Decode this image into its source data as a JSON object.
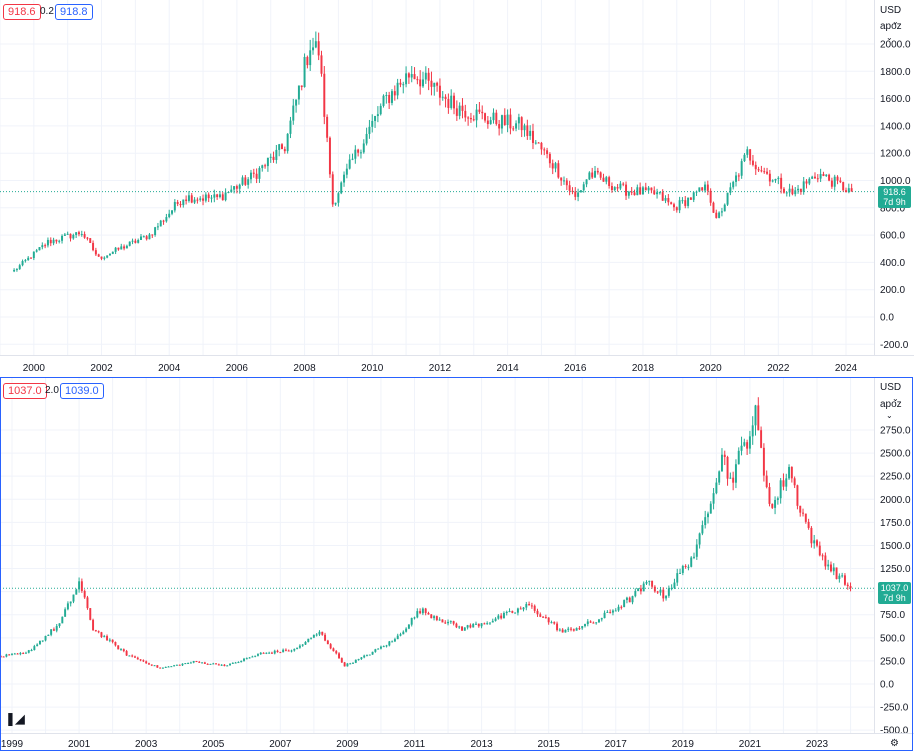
{
  "pane1": {
    "bid": "918.6",
    "spread": "0.2",
    "ask": "918.8",
    "currency": "USD",
    "scale_mode": "apoz",
    "last_price": "918.6",
    "countdown": "7d 9h"
  },
  "pane2": {
    "bid": "1037.0",
    "spread": "2.0",
    "ask": "1039.0",
    "currency": "USD",
    "scale_mode": "apoz",
    "last_price": "1037.0",
    "countdown": "7d 9h"
  },
  "colors": {
    "up": "#22ab94",
    "down": "#f23645",
    "grid": "#f0f3fa",
    "border": "#2962ff",
    "last_line": "#22ab94"
  },
  "icons": {
    "logo": "tradingview-logo-icon",
    "settings": "settings-gear-icon",
    "dropdown": "chevron-down-icon"
  },
  "chart_data": [
    {
      "type": "candlestick",
      "title": "",
      "ylim": [
        -250,
        2100
      ],
      "y_ticks": [
        "2000.0",
        "1800.0",
        "1600.0",
        "1400.0",
        "1200.0",
        "1000.0",
        "800.0",
        "600.0",
        "400.0",
        "200.0",
        "0.0",
        "-200.0"
      ],
      "x_ticks": [
        "2000",
        "2002",
        "2004",
        "2006",
        "2008",
        "2010",
        "2012",
        "2014",
        "2016",
        "2018",
        "2020",
        "2022",
        "2024"
      ],
      "last_value": 918.6,
      "key_points": [
        {
          "x": "1999-06",
          "y": 340
        },
        {
          "x": "2000-06",
          "y": 550
        },
        {
          "x": "2001-06",
          "y": 620
        },
        {
          "x": "2001-12",
          "y": 430
        },
        {
          "x": "2003-06",
          "y": 600
        },
        {
          "x": "2004-06",
          "y": 880
        },
        {
          "x": "2005-06",
          "y": 870
        },
        {
          "x": "2006-06",
          "y": 1020
        },
        {
          "x": "2007-06",
          "y": 1250
        },
        {
          "x": "2008-03",
          "y": 2000
        },
        {
          "x": "2008-06",
          "y": 1950
        },
        {
          "x": "2008-11",
          "y": 830
        },
        {
          "x": "2009-06",
          "y": 1150
        },
        {
          "x": "2010-06",
          "y": 1600
        },
        {
          "x": "2011-03",
          "y": 1800
        },
        {
          "x": "2011-09",
          "y": 1700
        },
        {
          "x": "2012-06",
          "y": 1550
        },
        {
          "x": "2013-06",
          "y": 1450
        },
        {
          "x": "2014-06",
          "y": 1400
        },
        {
          "x": "2015-06",
          "y": 1100
        },
        {
          "x": "2016-01",
          "y": 870
        },
        {
          "x": "2016-06",
          "y": 1050
        },
        {
          "x": "2017-06",
          "y": 930
        },
        {
          "x": "2018-06",
          "y": 900
        },
        {
          "x": "2018-12",
          "y": 800
        },
        {
          "x": "2019-12",
          "y": 950
        },
        {
          "x": "2020-03",
          "y": 700
        },
        {
          "x": "2021-02",
          "y": 1200
        },
        {
          "x": "2021-06",
          "y": 1100
        },
        {
          "x": "2022-06",
          "y": 900
        },
        {
          "x": "2023-03",
          "y": 1050
        },
        {
          "x": "2024-03",
          "y": 918.6
        }
      ]
    },
    {
      "type": "candlestick",
      "title": "",
      "ylim": [
        -600,
        3000
      ],
      "y_ticks": [
        "2750.0",
        "2500.0",
        "2250.0",
        "2000.0",
        "1750.0",
        "1500.0",
        "1250.0",
        "1000.0",
        "750.0",
        "500.0",
        "250.0",
        "0.0",
        "-250.0",
        "-500.0"
      ],
      "x_ticks": [
        "1999",
        "2001",
        "2003",
        "2005",
        "2007",
        "2009",
        "2011",
        "2013",
        "2015",
        "2017",
        "2019",
        "2021",
        "2023"
      ],
      "last_value": 1037.0,
      "key_points": [
        {
          "x": "1998-06",
          "y": 290
        },
        {
          "x": "1999-06",
          "y": 330
        },
        {
          "x": "2000-06",
          "y": 650
        },
        {
          "x": "2001-01",
          "y": 1100
        },
        {
          "x": "2001-06",
          "y": 600
        },
        {
          "x": "2002-06",
          "y": 320
        },
        {
          "x": "2003-06",
          "y": 170
        },
        {
          "x": "2004-06",
          "y": 240
        },
        {
          "x": "2005-06",
          "y": 200
        },
        {
          "x": "2006-06",
          "y": 330
        },
        {
          "x": "2007-06",
          "y": 370
        },
        {
          "x": "2008-03",
          "y": 560
        },
        {
          "x": "2008-12",
          "y": 200
        },
        {
          "x": "2009-06",
          "y": 280
        },
        {
          "x": "2010-06",
          "y": 480
        },
        {
          "x": "2011-03",
          "y": 800
        },
        {
          "x": "2012-06",
          "y": 600
        },
        {
          "x": "2013-06",
          "y": 700
        },
        {
          "x": "2014-06",
          "y": 850
        },
        {
          "x": "2015-06",
          "y": 560
        },
        {
          "x": "2016-06",
          "y": 680
        },
        {
          "x": "2017-06",
          "y": 920
        },
        {
          "x": "2018-01",
          "y": 1100
        },
        {
          "x": "2018-06",
          "y": 950
        },
        {
          "x": "2019-06",
          "y": 1450
        },
        {
          "x": "2020-03",
          "y": 2500
        },
        {
          "x": "2020-06",
          "y": 2200
        },
        {
          "x": "2021-03",
          "y": 2900
        },
        {
          "x": "2021-06",
          "y": 2300
        },
        {
          "x": "2021-09",
          "y": 1900
        },
        {
          "x": "2022-03",
          "y": 2350
        },
        {
          "x": "2022-06",
          "y": 2000
        },
        {
          "x": "2022-12",
          "y": 1500
        },
        {
          "x": "2023-06",
          "y": 1250
        },
        {
          "x": "2024-01",
          "y": 1037
        }
      ]
    }
  ]
}
